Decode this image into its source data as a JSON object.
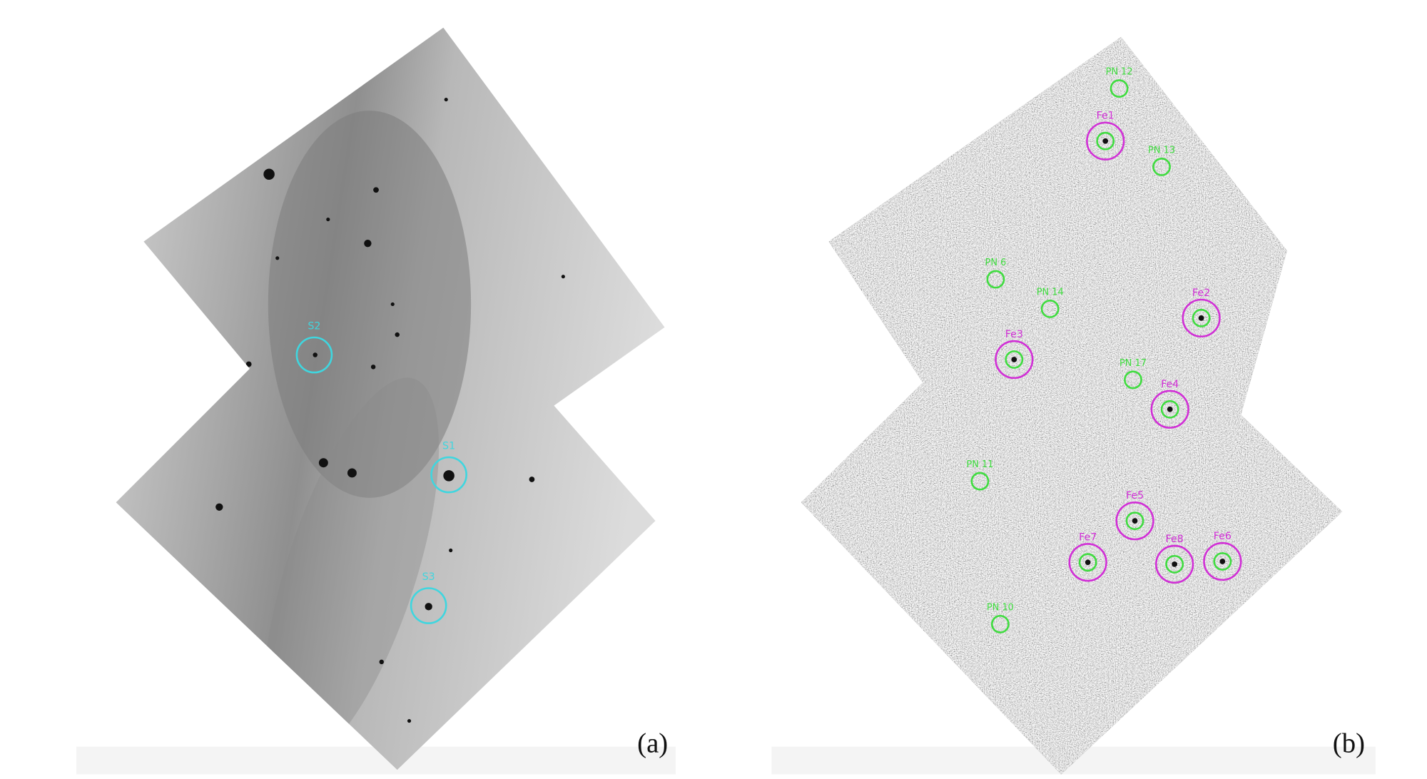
{
  "panels": [
    {
      "label": "(a)",
      "sources": [
        "S2",
        "S1",
        "S3"
      ]
    },
    {
      "label": "(b)",
      "fe_sources": [
        "Fe1",
        "Fe2",
        "Fe3",
        "Fe4",
        "Fe5",
        "Fe6",
        "Fe7",
        "Fe8"
      ],
      "pn_sources": [
        "PN 12",
        "PN 13",
        "PN 6",
        "PN 14",
        "PN 17",
        "PN 11",
        "PN 10"
      ]
    }
  ]
}
